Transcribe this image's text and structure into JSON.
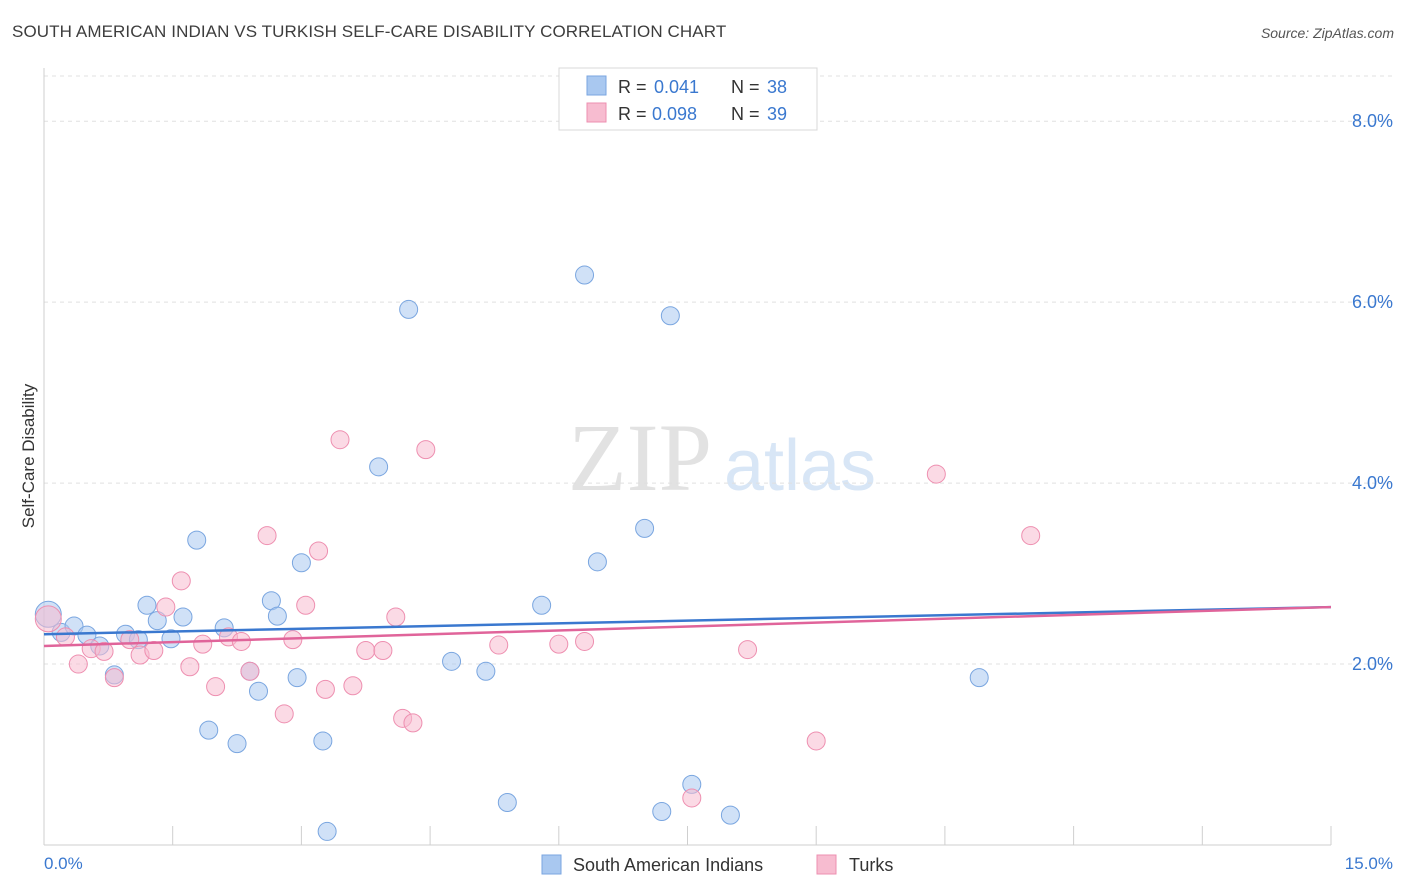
{
  "title": "SOUTH AMERICAN INDIAN VS TURKISH SELF-CARE DISABILITY CORRELATION CHART",
  "source": "Source: ZipAtlas.com",
  "watermark": {
    "zip": "ZIP",
    "atlas": "atlas"
  },
  "legend_top": [
    {
      "r_label": "R = ",
      "r_value": "0.041",
      "n_label": "N = ",
      "n_value": "38",
      "color": "#a9c8f0",
      "stroke": "#7aa6e0"
    },
    {
      "r_label": "R = ",
      "r_value": "0.098",
      "n_label": "N = ",
      "n_value": "39",
      "color": "#f7bcd0",
      "stroke": "#ee8fb0"
    }
  ],
  "legend_bottom": [
    {
      "label": "South American Indians",
      "color": "#a9c8f0"
    },
    {
      "label": "Turks",
      "color": "#f7bcd0"
    }
  ],
  "chart_data": {
    "type": "scatter",
    "title": "SOUTH AMERICAN INDIAN VS TURKISH SELF-CARE DISABILITY CORRELATION CHART",
    "xlabel": "",
    "ylabel": "Self-Care Disability",
    "xlim": [
      0,
      15
    ],
    "ylim": [
      0,
      8.5
    ],
    "x_tick_labels": [
      "0.0%",
      "15.0%"
    ],
    "y_ticks": [
      2,
      4,
      6,
      8
    ],
    "y_tick_labels": [
      "2.0%",
      "4.0%",
      "6.0%",
      "8.0%"
    ],
    "grid": true,
    "legend_placement": "top-center",
    "series": [
      {
        "name": "South American Indians",
        "color": "#a9c8f0",
        "line_color": "#3a78cf",
        "trend": [
          [
            0,
            2.33
          ],
          [
            15,
            2.63
          ]
        ],
        "points": [
          [
            0.05,
            2.55
          ],
          [
            0.2,
            2.35
          ],
          [
            0.35,
            2.42
          ],
          [
            0.5,
            2.32
          ],
          [
            0.65,
            2.2
          ],
          [
            0.82,
            1.88
          ],
          [
            0.95,
            2.33
          ],
          [
            1.1,
            2.27
          ],
          [
            1.2,
            2.65
          ],
          [
            1.32,
            2.48
          ],
          [
            1.48,
            2.28
          ],
          [
            1.62,
            2.52
          ],
          [
            1.78,
            3.37
          ],
          [
            1.92,
            1.27
          ],
          [
            2.1,
            2.4
          ],
          [
            2.25,
            1.12
          ],
          [
            2.4,
            1.92
          ],
          [
            2.5,
            1.7
          ],
          [
            2.65,
            2.7
          ],
          [
            2.72,
            2.53
          ],
          [
            2.95,
            1.85
          ],
          [
            3.0,
            3.12
          ],
          [
            3.25,
            1.15
          ],
          [
            3.3,
            0.15
          ],
          [
            3.9,
            4.18
          ],
          [
            4.25,
            5.92
          ],
          [
            4.75,
            2.03
          ],
          [
            5.15,
            1.92
          ],
          [
            5.4,
            0.47
          ],
          [
            5.8,
            2.65
          ],
          [
            6.3,
            6.3
          ],
          [
            6.45,
            3.13
          ],
          [
            7.0,
            3.5
          ],
          [
            7.2,
            0.37
          ],
          [
            7.3,
            5.85
          ],
          [
            7.55,
            0.67
          ],
          [
            8.0,
            0.33
          ],
          [
            10.9,
            1.85
          ]
        ]
      },
      {
        "name": "Turks",
        "color": "#f7bcd0",
        "line_color": "#e0649a",
        "trend": [
          [
            0,
            2.2
          ],
          [
            15,
            2.63
          ]
        ],
        "points": [
          [
            0.05,
            2.5
          ],
          [
            0.25,
            2.3
          ],
          [
            0.4,
            2.0
          ],
          [
            0.55,
            2.17
          ],
          [
            0.7,
            2.14
          ],
          [
            0.82,
            1.85
          ],
          [
            1.0,
            2.27
          ],
          [
            1.12,
            2.1
          ],
          [
            1.28,
            2.15
          ],
          [
            1.42,
            2.63
          ],
          [
            1.6,
            2.92
          ],
          [
            1.7,
            1.97
          ],
          [
            1.85,
            2.22
          ],
          [
            2.0,
            1.75
          ],
          [
            2.15,
            2.3
          ],
          [
            2.3,
            2.25
          ],
          [
            2.4,
            1.92
          ],
          [
            2.6,
            3.42
          ],
          [
            2.8,
            1.45
          ],
          [
            2.9,
            2.27
          ],
          [
            3.05,
            2.65
          ],
          [
            3.2,
            3.25
          ],
          [
            3.28,
            1.72
          ],
          [
            3.45,
            4.48
          ],
          [
            3.6,
            1.76
          ],
          [
            3.75,
            2.15
          ],
          [
            3.95,
            2.15
          ],
          [
            4.1,
            2.52
          ],
          [
            4.18,
            1.4
          ],
          [
            4.3,
            1.35
          ],
          [
            4.45,
            4.37
          ],
          [
            5.3,
            2.21
          ],
          [
            6.0,
            2.22
          ],
          [
            6.3,
            2.25
          ],
          [
            7.55,
            0.52
          ],
          [
            8.2,
            2.16
          ],
          [
            9.0,
            1.15
          ],
          [
            10.4,
            4.1
          ],
          [
            11.5,
            3.42
          ]
        ]
      }
    ]
  }
}
